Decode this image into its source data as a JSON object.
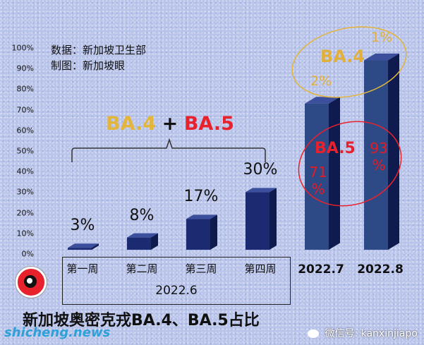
{
  "source": {
    "data": "数据：新加坡卫生部",
    "made_by": "制图：新加坡眼"
  },
  "title": "新加坡奥密克戎BA.4、BA.5占比",
  "group_label": {
    "ba4": "BA.4",
    "plus": "+",
    "ba5": "BA.5"
  },
  "year_label": "2022.6",
  "watermark_left": "shicheng.news",
  "watermark_right": "微信号: kanxinjiapo",
  "colors": {
    "bar_front": "#1c2a72",
    "bar_front_light": "#2e4a86",
    "ba4": "#e3b53a",
    "ba5": "#e8222c"
  },
  "chart_data": {
    "type": "bar",
    "ylim": [
      0,
      100
    ],
    "yticks": [
      "0%",
      "10%",
      "20%",
      "30%",
      "40%",
      "50%",
      "60%",
      "70%",
      "80%",
      "90%",
      "100%"
    ],
    "weekly": {
      "categories": [
        "第一周",
        "第二周",
        "第三周",
        "第四周"
      ],
      "values": [
        3,
        8,
        17,
        30
      ],
      "labels": [
        "3%",
        "8%",
        "17%",
        "30%"
      ]
    },
    "monthly": {
      "categories": [
        "2022.7",
        "2022.8"
      ],
      "totals": [
        73,
        94
      ],
      "ba4_labels": [
        "2%",
        "1%"
      ],
      "ba5_labels": [
        "71%",
        "93%"
      ],
      "ba4_values": [
        2,
        1
      ],
      "ba5_values": [
        71,
        93
      ],
      "series_annotations": {
        "ba4": "BA.4",
        "ba5": "BA.5"
      }
    }
  }
}
